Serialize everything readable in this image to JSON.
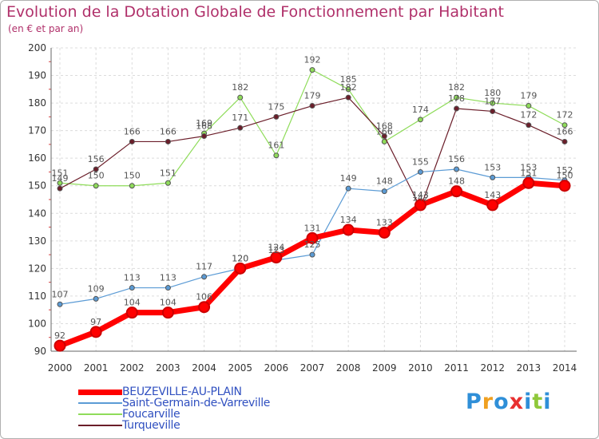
{
  "chart_data": {
    "type": "line",
    "title": "Evolution de la Dotation Globale de Fonctionnement par Habitant",
    "subtitle": "(en € et par an)",
    "x": [
      "2000",
      "2001",
      "2002",
      "2003",
      "2004",
      "2005",
      "2006",
      "2007",
      "2008",
      "2009",
      "2010",
      "2011",
      "2012",
      "2013",
      "2014"
    ],
    "ylim": [
      90,
      200
    ],
    "yticks": [
      "90",
      "100",
      "110",
      "120",
      "130",
      "140",
      "150",
      "160",
      "170",
      "180",
      "190",
      "200"
    ],
    "grid": true,
    "legend_position": "bottom-left",
    "series": [
      {
        "name": "BEUZEVILLE-AU-PLAIN",
        "color": "#ff0000",
        "values": [
          92,
          97,
          104,
          104,
          106,
          120,
          124,
          131,
          134,
          133,
          143,
          148,
          143,
          151,
          150
        ]
      },
      {
        "name": "Saint-Germain-de-Varreville",
        "color": "#5b9bd5",
        "values": [
          107,
          109,
          113,
          113,
          117,
          120,
          123,
          125,
          149,
          148,
          155,
          156,
          153,
          153,
          152
        ]
      },
      {
        "name": "Foucarville",
        "color": "#8fdc5a",
        "values": [
          151,
          150,
          150,
          151,
          169,
          182,
          161,
          192,
          185,
          166,
          174,
          182,
          180,
          179,
          172
        ]
      },
      {
        "name": "Turqueville",
        "color": "#6b1e2a",
        "values": [
          149,
          156,
          166,
          166,
          168,
          171,
          175,
          179,
          182,
          168,
          142,
          178,
          177,
          172,
          166
        ]
      }
    ]
  },
  "logo": {
    "letters": [
      "P",
      "r",
      "o",
      "x",
      "i",
      "t",
      "i"
    ],
    "colors": [
      "#2f8fd8",
      "#f0a020",
      "#2f8fd8",
      "#e83030",
      "#2f8fd8",
      "#8fc83a",
      "#2f8fd8"
    ]
  }
}
